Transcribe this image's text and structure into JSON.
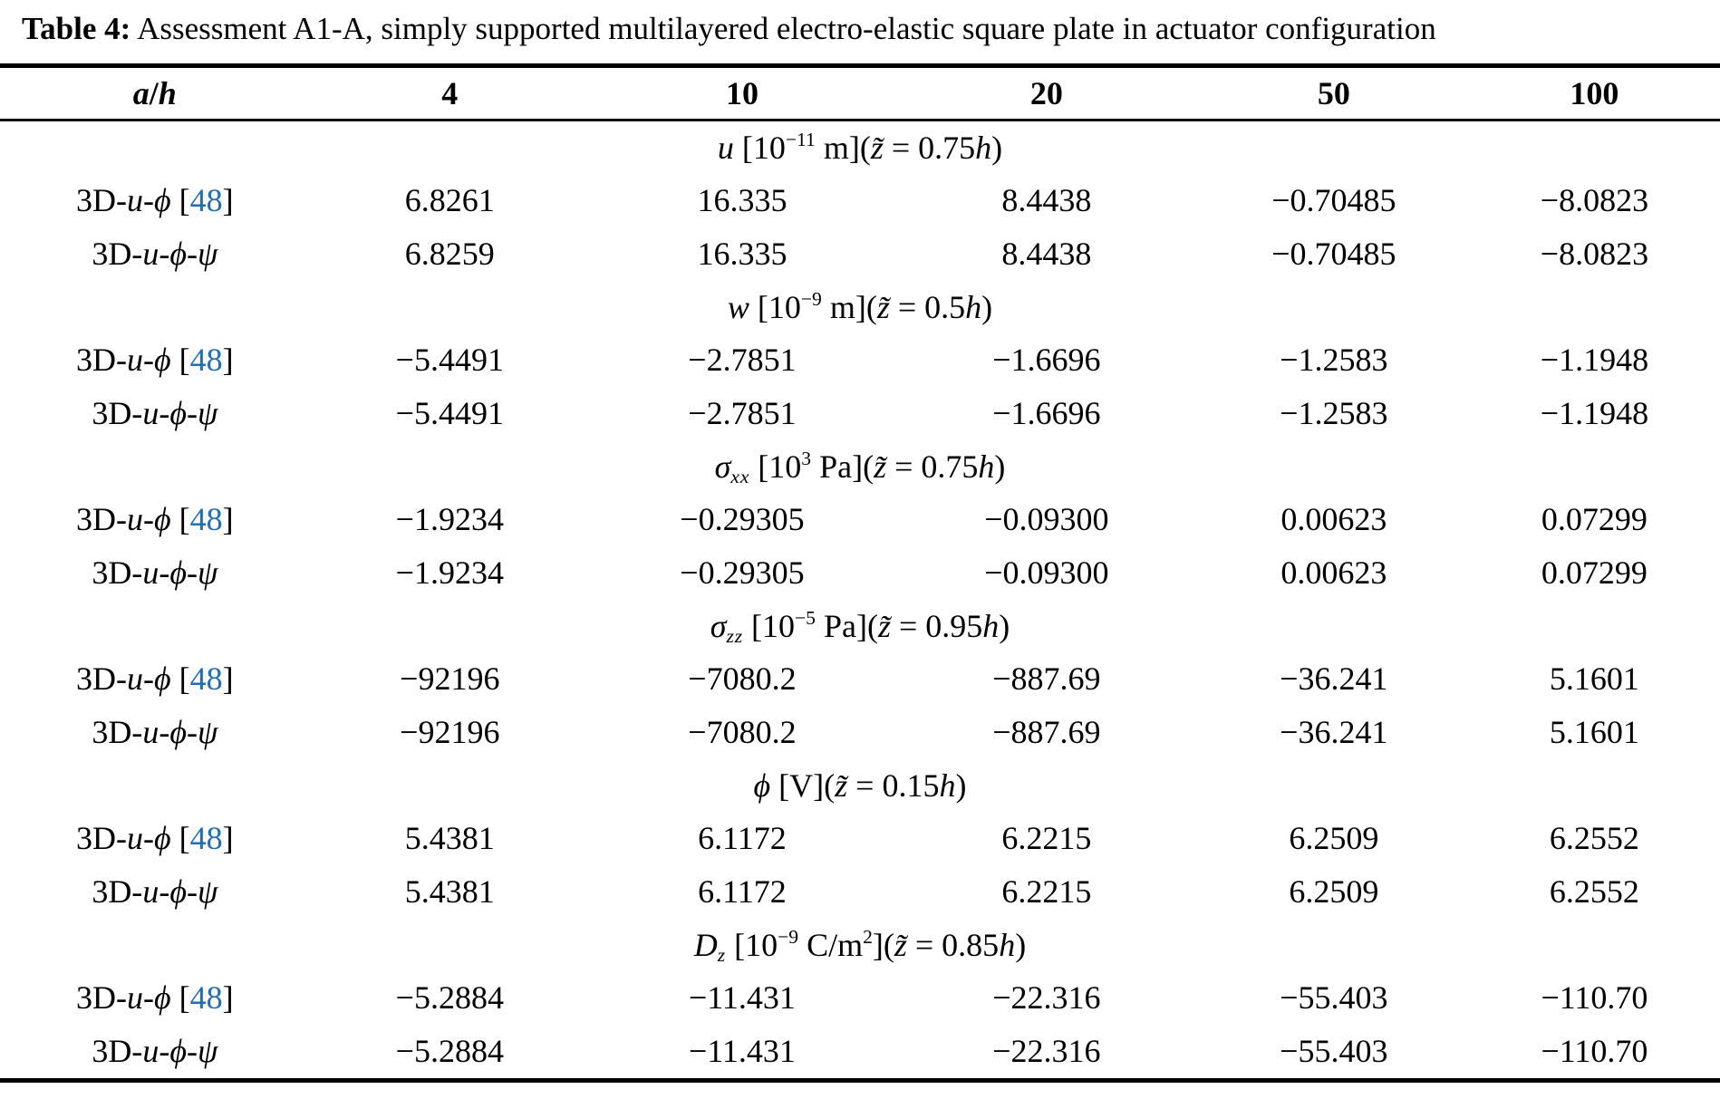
{
  "title": {
    "label": "Table 4:",
    "text": " Assessment A1-A, simply supported multilayered electro-elastic square plate in actuator configuration"
  },
  "citation_color": "#1c6fbe",
  "header": {
    "ah_parts": [
      {
        "t": "i",
        "v": "a",
        "n": "ah-a"
      },
      {
        "t": "r",
        "v": "/",
        "n": "ah-slash"
      },
      {
        "t": "i",
        "v": "h",
        "n": "ah-h"
      }
    ],
    "values": [
      "4",
      "10",
      "20",
      "50",
      "100"
    ]
  },
  "sections": [
    {
      "name": "u-displacement",
      "header_parts": [
        {
          "t": "i",
          "v": "u"
        },
        {
          "t": "r",
          "v": " [10"
        },
        {
          "t": "sup",
          "v": "−11"
        },
        {
          "t": "r",
          "v": " m]("
        },
        {
          "t": "i",
          "v": "z̃",
          "n": "z-tilde"
        },
        {
          "t": "r",
          "v": " = 0.75"
        },
        {
          "t": "i",
          "v": "h"
        },
        {
          "t": "r",
          "v": ")"
        }
      ],
      "rows": [
        {
          "label_parts": [
            {
              "t": "r",
              "v": "3D-"
            },
            {
              "t": "i",
              "v": "u"
            },
            {
              "t": "r",
              "v": "-"
            },
            {
              "t": "i",
              "v": "ϕ"
            },
            {
              "t": "r",
              "v": " ["
            },
            {
              "t": "cite",
              "v": "48"
            },
            {
              "t": "r",
              "v": "]"
            }
          ],
          "values": [
            "6.8261",
            "16.335",
            "8.4438",
            "−0.70485",
            "−8.0823"
          ]
        },
        {
          "label_parts": [
            {
              "t": "r",
              "v": "3D-"
            },
            {
              "t": "i",
              "v": "u"
            },
            {
              "t": "r",
              "v": "-"
            },
            {
              "t": "i",
              "v": "ϕ"
            },
            {
              "t": "r",
              "v": "-"
            },
            {
              "t": "i",
              "v": "ψ"
            }
          ],
          "values": [
            "6.8259",
            "16.335",
            "8.4438",
            "−0.70485",
            "−8.0823"
          ]
        }
      ]
    },
    {
      "name": "w-displacement",
      "header_parts": [
        {
          "t": "i",
          "v": "w"
        },
        {
          "t": "r",
          "v": " [10"
        },
        {
          "t": "sup",
          "v": "−9"
        },
        {
          "t": "r",
          "v": " m]("
        },
        {
          "t": "i",
          "v": "z̃",
          "n": "z-tilde"
        },
        {
          "t": "r",
          "v": " = 0.5"
        },
        {
          "t": "i",
          "v": "h"
        },
        {
          "t": "r",
          "v": ")"
        }
      ],
      "rows": [
        {
          "label_parts": [
            {
              "t": "r",
              "v": "3D-"
            },
            {
              "t": "i",
              "v": "u"
            },
            {
              "t": "r",
              "v": "-"
            },
            {
              "t": "i",
              "v": "ϕ"
            },
            {
              "t": "r",
              "v": " ["
            },
            {
              "t": "cite",
              "v": "48"
            },
            {
              "t": "r",
              "v": "]"
            }
          ],
          "values": [
            "−5.4491",
            "−2.7851",
            "−1.6696",
            "−1.2583",
            "−1.1948"
          ]
        },
        {
          "label_parts": [
            {
              "t": "r",
              "v": "3D-"
            },
            {
              "t": "i",
              "v": "u"
            },
            {
              "t": "r",
              "v": "-"
            },
            {
              "t": "i",
              "v": "ϕ"
            },
            {
              "t": "r",
              "v": "-"
            },
            {
              "t": "i",
              "v": "ψ"
            }
          ],
          "values": [
            "−5.4491",
            "−2.7851",
            "−1.6696",
            "−1.2583",
            "−1.1948"
          ]
        }
      ]
    },
    {
      "name": "sigma-xx-stress",
      "header_parts": [
        {
          "t": "i",
          "v": "σ"
        },
        {
          "t": "sub",
          "v": "xx"
        },
        {
          "t": "r",
          "v": " [10"
        },
        {
          "t": "sup",
          "v": "3"
        },
        {
          "t": "r",
          "v": " Pa]("
        },
        {
          "t": "i",
          "v": "z̃",
          "n": "z-tilde"
        },
        {
          "t": "r",
          "v": " = 0.75"
        },
        {
          "t": "i",
          "v": "h"
        },
        {
          "t": "r",
          "v": ")"
        }
      ],
      "rows": [
        {
          "label_parts": [
            {
              "t": "r",
              "v": "3D-"
            },
            {
              "t": "i",
              "v": "u"
            },
            {
              "t": "r",
              "v": "-"
            },
            {
              "t": "i",
              "v": "ϕ"
            },
            {
              "t": "r",
              "v": " ["
            },
            {
              "t": "cite",
              "v": "48"
            },
            {
              "t": "r",
              "v": "]"
            }
          ],
          "values": [
            "−1.9234",
            "−0.29305",
            "−0.09300",
            "0.00623",
            "0.07299"
          ]
        },
        {
          "label_parts": [
            {
              "t": "r",
              "v": "3D-"
            },
            {
              "t": "i",
              "v": "u"
            },
            {
              "t": "r",
              "v": "-"
            },
            {
              "t": "i",
              "v": "ϕ"
            },
            {
              "t": "r",
              "v": "-"
            },
            {
              "t": "i",
              "v": "ψ"
            }
          ],
          "values": [
            "−1.9234",
            "−0.29305",
            "−0.09300",
            "0.00623",
            "0.07299"
          ]
        }
      ]
    },
    {
      "name": "sigma-zz-stress",
      "header_parts": [
        {
          "t": "i",
          "v": "σ"
        },
        {
          "t": "sub",
          "v": "zz"
        },
        {
          "t": "r",
          "v": " [10"
        },
        {
          "t": "sup",
          "v": "−5"
        },
        {
          "t": "r",
          "v": " Pa]("
        },
        {
          "t": "i",
          "v": "z̃",
          "n": "z-tilde"
        },
        {
          "t": "r",
          "v": " = 0.95"
        },
        {
          "t": "i",
          "v": "h"
        },
        {
          "t": "r",
          "v": ")"
        }
      ],
      "rows": [
        {
          "label_parts": [
            {
              "t": "r",
              "v": "3D-"
            },
            {
              "t": "i",
              "v": "u"
            },
            {
              "t": "r",
              "v": "-"
            },
            {
              "t": "i",
              "v": "ϕ"
            },
            {
              "t": "r",
              "v": " ["
            },
            {
              "t": "cite",
              "v": "48"
            },
            {
              "t": "r",
              "v": "]"
            }
          ],
          "values": [
            "−92196",
            "−7080.2",
            "−887.69",
            "−36.241",
            "5.1601"
          ]
        },
        {
          "label_parts": [
            {
              "t": "r",
              "v": "3D-"
            },
            {
              "t": "i",
              "v": "u"
            },
            {
              "t": "r",
              "v": "-"
            },
            {
              "t": "i",
              "v": "ϕ"
            },
            {
              "t": "r",
              "v": "-"
            },
            {
              "t": "i",
              "v": "ψ"
            }
          ],
          "values": [
            "−92196",
            "−7080.2",
            "−887.69",
            "−36.241",
            "5.1601"
          ]
        }
      ]
    },
    {
      "name": "phi-potential",
      "header_parts": [
        {
          "t": "i",
          "v": "ϕ"
        },
        {
          "t": "r",
          "v": " [V]("
        },
        {
          "t": "i",
          "v": "z̃",
          "n": "z-tilde"
        },
        {
          "t": "r",
          "v": " = 0.15"
        },
        {
          "t": "i",
          "v": "h"
        },
        {
          "t": "r",
          "v": ")"
        }
      ],
      "rows": [
        {
          "label_parts": [
            {
              "t": "r",
              "v": "3D-"
            },
            {
              "t": "i",
              "v": "u"
            },
            {
              "t": "r",
              "v": "-"
            },
            {
              "t": "i",
              "v": "ϕ"
            },
            {
              "t": "r",
              "v": " ["
            },
            {
              "t": "cite",
              "v": "48"
            },
            {
              "t": "r",
              "v": "]"
            }
          ],
          "values": [
            "5.4381",
            "6.1172",
            "6.2215",
            "6.2509",
            "6.2552"
          ]
        },
        {
          "label_parts": [
            {
              "t": "r",
              "v": "3D-"
            },
            {
              "t": "i",
              "v": "u"
            },
            {
              "t": "r",
              "v": "-"
            },
            {
              "t": "i",
              "v": "ϕ"
            },
            {
              "t": "r",
              "v": "-"
            },
            {
              "t": "i",
              "v": "ψ"
            }
          ],
          "values": [
            "5.4381",
            "6.1172",
            "6.2215",
            "6.2509",
            "6.2552"
          ]
        }
      ]
    },
    {
      "name": "dz-electric-displacement",
      "header_parts": [
        {
          "t": "i",
          "v": "D",
          "n": "script-capital-d"
        },
        {
          "t": "sub",
          "v": "z"
        },
        {
          "t": "r",
          "v": " [10"
        },
        {
          "t": "sup",
          "v": "−9"
        },
        {
          "t": "r",
          "v": " C/m"
        },
        {
          "t": "sup",
          "v": "2"
        },
        {
          "t": "r",
          "v": "]("
        },
        {
          "t": "i",
          "v": "z̃",
          "n": "z-tilde"
        },
        {
          "t": "r",
          "v": " = 0.85"
        },
        {
          "t": "i",
          "v": "h"
        },
        {
          "t": "r",
          "v": ")"
        }
      ],
      "rows": [
        {
          "label_parts": [
            {
              "t": "r",
              "v": "3D-"
            },
            {
              "t": "i",
              "v": "u"
            },
            {
              "t": "r",
              "v": "-"
            },
            {
              "t": "i",
              "v": "ϕ"
            },
            {
              "t": "r",
              "v": " ["
            },
            {
              "t": "cite",
              "v": "48"
            },
            {
              "t": "r",
              "v": "]"
            }
          ],
          "values": [
            "−5.2884",
            "−11.431",
            "−22.316",
            "−55.403",
            "−110.70"
          ]
        },
        {
          "label_parts": [
            {
              "t": "r",
              "v": "3D-"
            },
            {
              "t": "i",
              "v": "u"
            },
            {
              "t": "r",
              "v": "-"
            },
            {
              "t": "i",
              "v": "ϕ"
            },
            {
              "t": "r",
              "v": "-"
            },
            {
              "t": "i",
              "v": "ψ"
            }
          ],
          "values": [
            "−5.2884",
            "−11.431",
            "−22.316",
            "−55.403",
            "−110.70"
          ]
        }
      ]
    }
  ]
}
